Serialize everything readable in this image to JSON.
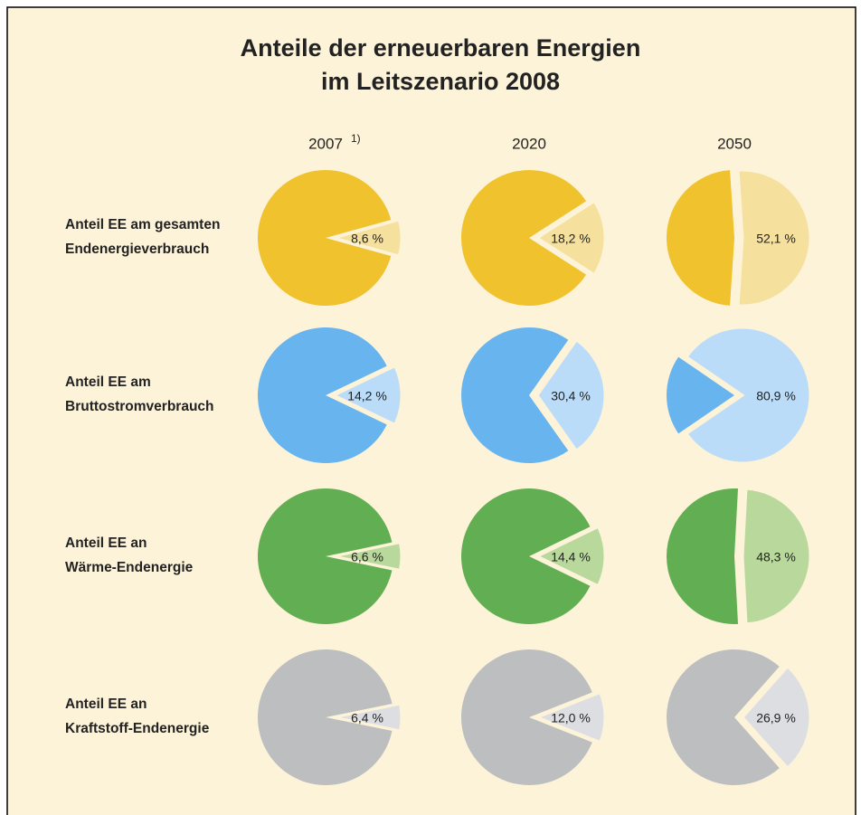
{
  "chart_data": {
    "type": "pie",
    "title": [
      "Anteile der erneuerbaren Energien",
      "im Leitszenario 2008"
    ],
    "columns": [
      "2007",
      "2020",
      "2050"
    ],
    "footnote_marker": "1)",
    "rows": [
      {
        "label": [
          "Anteil EE am gesamten",
          "Endenergieverbrauch"
        ],
        "color": "#f0c22e",
        "highlight_color": "#f5e09e",
        "values": [
          8.6,
          18.2,
          52.1
        ],
        "value_labels": [
          "8,6 %",
          "18,2 %",
          "52,1 %"
        ]
      },
      {
        "label": [
          "Anteil EE am",
          "Bruttostromverbrauch"
        ],
        "color": "#68b4ee",
        "highlight_color": "#badcf8",
        "values": [
          14.2,
          30.4,
          80.9
        ],
        "value_labels": [
          "14,2 %",
          "30,4 %",
          "80,9 %"
        ]
      },
      {
        "label": [
          "Anteil EE an",
          "Wärme-Endenergie"
        ],
        "color": "#62ae52",
        "highlight_color": "#b9d99c",
        "values": [
          6.6,
          14.4,
          48.3
        ],
        "value_labels": [
          "6,6 %",
          "14,4 %",
          "48,3 %"
        ]
      },
      {
        "label": [
          "Anteil EE an",
          "Kraftstoff-Endenergie"
        ],
        "color": "#bcbec0",
        "highlight_color": "#dcdee2",
        "values": [
          6.4,
          12.0,
          26.9
        ],
        "value_labels": [
          "6,4 %",
          "12,0 %",
          "26,9 %"
        ]
      }
    ]
  }
}
